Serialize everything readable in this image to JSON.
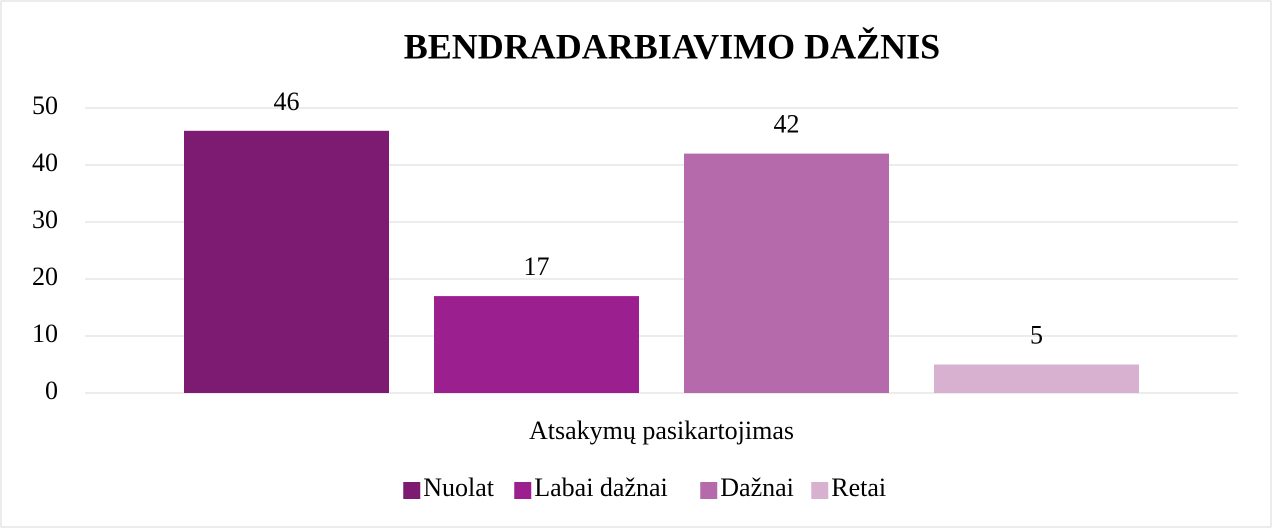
{
  "chart_data": {
    "type": "bar",
    "title": "BENDRADARBIAVIMO DAŽNIS",
    "categories": [
      "Atsakymų pasikartojimas"
    ],
    "series": [
      {
        "name": "Nuolat",
        "color": "#7d1a71",
        "values": [
          46
        ]
      },
      {
        "name": "Labai dažnai",
        "color": "#9c1f8f",
        "values": [
          17
        ]
      },
      {
        "name": "Dažnai",
        "color": "#b46aab",
        "values": [
          42
        ]
      },
      {
        "name": "Retai",
        "color": "#d8b1d0",
        "values": [
          5
        ]
      }
    ],
    "ylim": [
      0,
      50
    ],
    "yticks": [
      0,
      10,
      20,
      30,
      40,
      50
    ],
    "grid": true,
    "legend": "bottom"
  }
}
